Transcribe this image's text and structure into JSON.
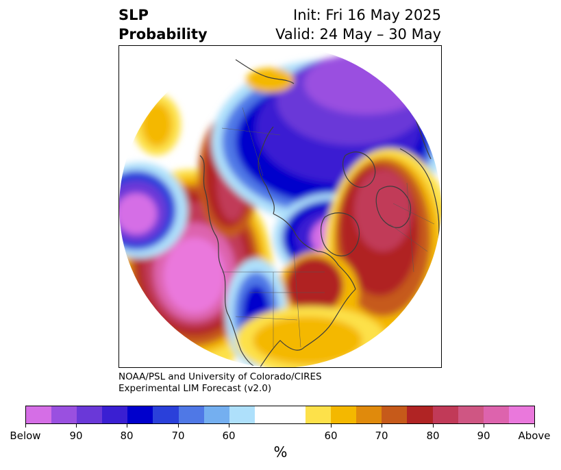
{
  "header": {
    "title_line1": "SLP",
    "title_line2": "Probability",
    "init": "Init: Fri 16 May 2025",
    "valid": "Valid: 24 May – 30 May"
  },
  "credit": {
    "line1": "NOAA/PSL and University of Colorado/CIRES",
    "line2": "Experimental LIM Forecast (v2.0)"
  },
  "colorbar": {
    "units": "%",
    "colors": [
      "#d56ee6",
      "#9a50e0",
      "#6a38d8",
      "#3a1fd2",
      "#0000cc",
      "#2a40da",
      "#4f78e6",
      "#74aff0",
      "#aee0fb",
      "#ffffff",
      "#ffffff",
      "#fde14a",
      "#f4b800",
      "#e08a0c",
      "#c65a1a",
      "#b02424",
      "#c13a58",
      "#cf5683",
      "#dd63ad",
      "#ea78dc"
    ],
    "tick_labels": [
      "Below",
      "90",
      "80",
      "70",
      "60",
      "60",
      "70",
      "80",
      "90",
      "Above"
    ]
  }
}
